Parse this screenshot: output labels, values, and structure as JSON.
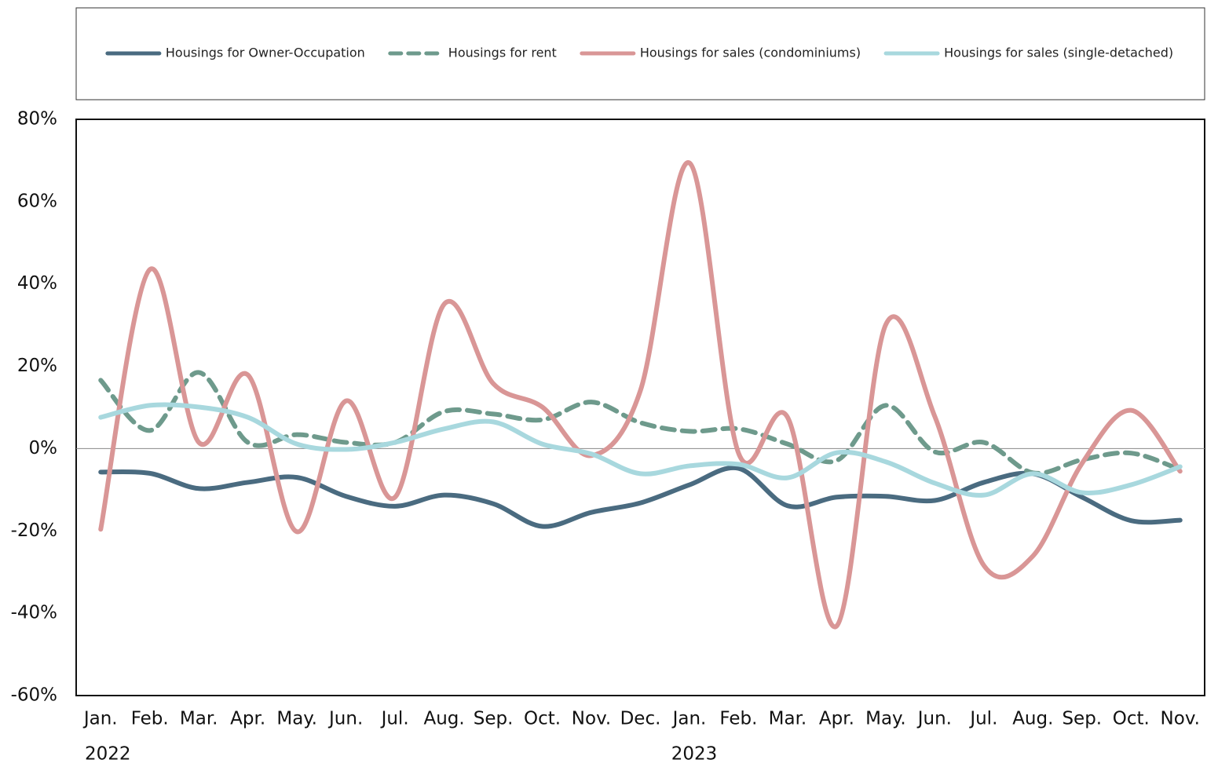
{
  "chart_data": {
    "type": "line",
    "categories": [
      "Jan.",
      "Feb.",
      "Mar.",
      "Apr.",
      "May.",
      "Jun.",
      "Jul.",
      "Aug.",
      "Sep.",
      "Oct.",
      "Nov.",
      "Dec.",
      "Jan.",
      "Feb.",
      "Mar.",
      "Apr.",
      "May.",
      "Jun.",
      "Jul.",
      "Aug.",
      "Sep.",
      "Oct.",
      "Nov."
    ],
    "category_groups": [
      {
        "label": "2022",
        "count": 12
      },
      {
        "label": "2023",
        "count": 11
      }
    ],
    "series": [
      {
        "name": "Housings for Owner-Occupation",
        "color": "#4a6b80",
        "dashed": false,
        "values": [
          -5.7,
          -6,
          -9.7,
          -8.2,
          -7,
          -11.6,
          -14,
          -11.3,
          -13.4,
          -18.9,
          -15.5,
          -13.2,
          -8.8,
          -4.8,
          -13.9,
          -11.8,
          -11.6,
          -12.6,
          -8.2,
          -6.1,
          -11.8,
          -17.5,
          -17.4
        ]
      },
      {
        "name": "Housings for rent",
        "color": "#6e9a8c",
        "dashed": true,
        "values": [
          16.6,
          4.4,
          18.5,
          1.5,
          3.4,
          1.5,
          1.5,
          9,
          8.4,
          7,
          11.3,
          6.3,
          4.2,
          4.8,
          1.1,
          -2.9,
          10.5,
          -0.8,
          1.5,
          -5.9,
          -2.7,
          -1.1,
          -5.1
        ]
      },
      {
        "name": "Housings for sales (condominiums)",
        "color": "#d99696",
        "dashed": false,
        "values": [
          -19.6,
          43.5,
          1.5,
          17.9,
          -20.2,
          11.6,
          -11.8,
          35.1,
          15.8,
          10.1,
          -1.7,
          14.1,
          69.4,
          -1.1,
          7.6,
          -43.1,
          30.1,
          7.8,
          -28.4,
          -26.1,
          -3.6,
          9.3,
          -5.5
        ]
      },
      {
        "name": "Housings for sales (single-detached)",
        "color": "#a8d8de",
        "dashed": false,
        "values": [
          7.6,
          10.5,
          10.1,
          7.6,
          1.1,
          -0.2,
          1.5,
          4.8,
          6.5,
          1.1,
          -1.3,
          -6.1,
          -4.2,
          -3.8,
          -7.1,
          -1,
          -3.2,
          -8.4,
          -11.3,
          -6.1,
          -10.7,
          -8.8,
          -4.4
        ]
      }
    ],
    "ylim": [
      -60,
      80
    ],
    "yticks": [
      {
        "value": -60,
        "label": "-60%"
      },
      {
        "value": -40,
        "label": "-40%"
      },
      {
        "value": -20,
        "label": "-20%"
      },
      {
        "value": 0,
        "label": "0%"
      },
      {
        "value": 20,
        "label": "20%"
      },
      {
        "value": 40,
        "label": "40%"
      },
      {
        "value": 60,
        "label": "60%"
      },
      {
        "value": 80,
        "label": "80%"
      }
    ],
    "zero_line": true,
    "grid": false,
    "legend": "top"
  }
}
